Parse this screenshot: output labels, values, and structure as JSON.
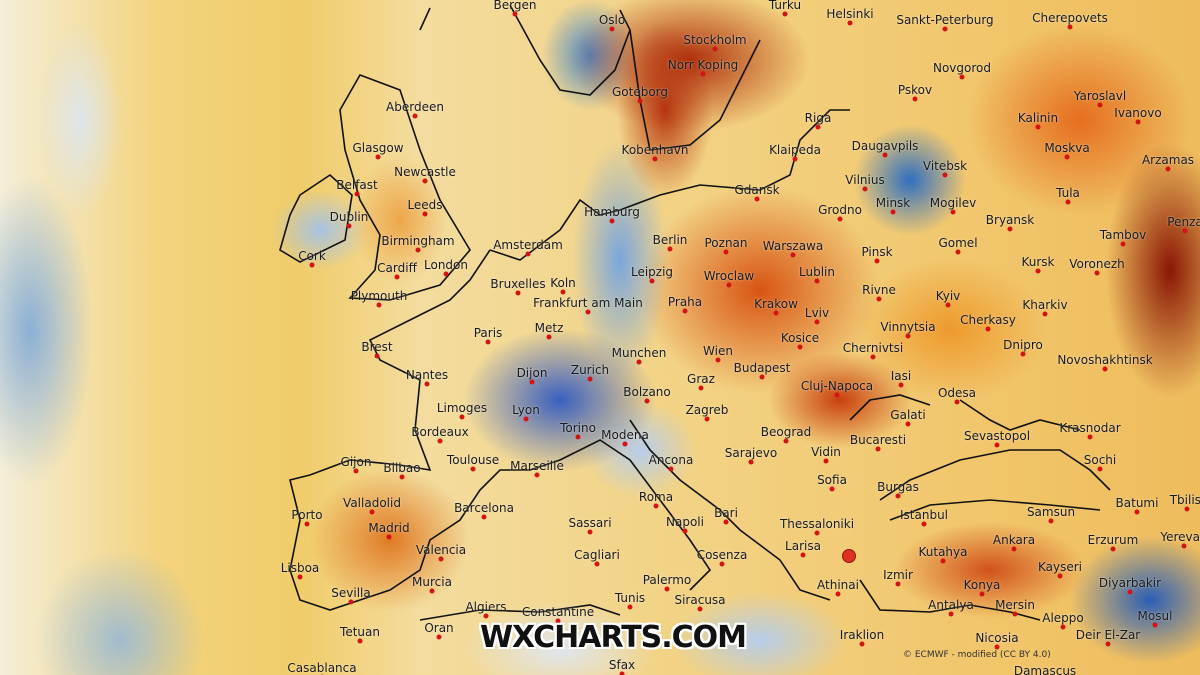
{
  "map": {
    "branding": "WXCHARTS.COM",
    "credit": "© ECMWF - modified (CC BY 4.0)",
    "marker_color": "#e03020",
    "palette": {
      "warm": "#b0300a",
      "mild": "#f2d283",
      "cool": "#2f6fc0"
    },
    "cities": [
      "Bergen",
      "Oslo",
      "Stockholm",
      "Turku",
      "Helsinki",
      "Sankt-Peterburg",
      "Cherepovets",
      "Norr Koping",
      "Goteborg",
      "Novgorod",
      "Pskov",
      "Yaroslavl",
      "Ivanovo",
      "Aberdeen",
      "Riga",
      "Kalinin",
      "Moskva",
      "Arzamas",
      "Glasgow",
      "Kobenhavn",
      "Klaipeda",
      "Daugavpils",
      "Vitebsk",
      "Belfast",
      "Newcastle",
      "Vilnius",
      "Minsk",
      "Mogilev",
      "Gdansk",
      "Tula",
      "Leeds",
      "Dublin",
      "Hamburg",
      "Grodno",
      "Bryansk",
      "Penza",
      "Birmingham",
      "Amsterdam",
      "Berlin",
      "Poznan",
      "Warszawa",
      "Gomel",
      "Pinsk",
      "Tambov",
      "Cork",
      "London",
      "Cardiff",
      "Leipzig",
      "Wroclaw",
      "Lublin",
      "Kursk",
      "Voronezh",
      "Koln",
      "Bruxelles",
      "Plymouth",
      "Frankfurt am Main",
      "Praha",
      "Krakow",
      "Rivne",
      "Kyiv",
      "Kharkiv",
      "Paris",
      "Metz",
      "Lviv",
      "Vinnytsia",
      "Cherkasy",
      "Dnipro",
      "Kosice",
      "Brest",
      "Munchen",
      "Wien",
      "Chernivtsi",
      "Novoshakhtinsk",
      "Nantes",
      "Dijon",
      "Zurich",
      "Budapest",
      "Iasi",
      "Graz",
      "Cluj-Napoca",
      "Odesa",
      "Limoges",
      "Lyon",
      "Bolzano",
      "Zagreb",
      "Galati",
      "Bordeaux",
      "Torino",
      "Modena",
      "Beograd",
      "Bucaresti",
      "Sevastopol",
      "Krasnodar",
      "Sarajevo",
      "Toulouse",
      "Marseille",
      "Ancona",
      "Vidin",
      "Sochi",
      "Gijon",
      "Bilbao",
      "Sofia",
      "Burgas",
      "Batumi",
      "Tbilisi",
      "Valladolid",
      "Barcelona",
      "Roma",
      "Istanbul",
      "Samsun",
      "Porto",
      "Madrid",
      "Sassari",
      "Napoli",
      "Bari",
      "Thessaloniki",
      "Yerevan",
      "Ankara",
      "Erzurum",
      "Valencia",
      "Cagliari",
      "Cosenza",
      "Larisa",
      "Kutahya",
      "Kayseri",
      "Lisboa",
      "Murcia",
      "Palermo",
      "Izmir",
      "Konya",
      "Diyarbakir",
      "Sevilla",
      "Siracusa",
      "Athinai",
      "Antalya",
      "Mersin",
      "Mosul",
      "Algiers",
      "Constantine",
      "Tunis",
      "Aleppo",
      "Tetuan",
      "Oran",
      "Iraklion",
      "Nicosia",
      "Deir El-Zar",
      "Sfax",
      "Casablanca",
      "Damascus"
    ]
  }
}
